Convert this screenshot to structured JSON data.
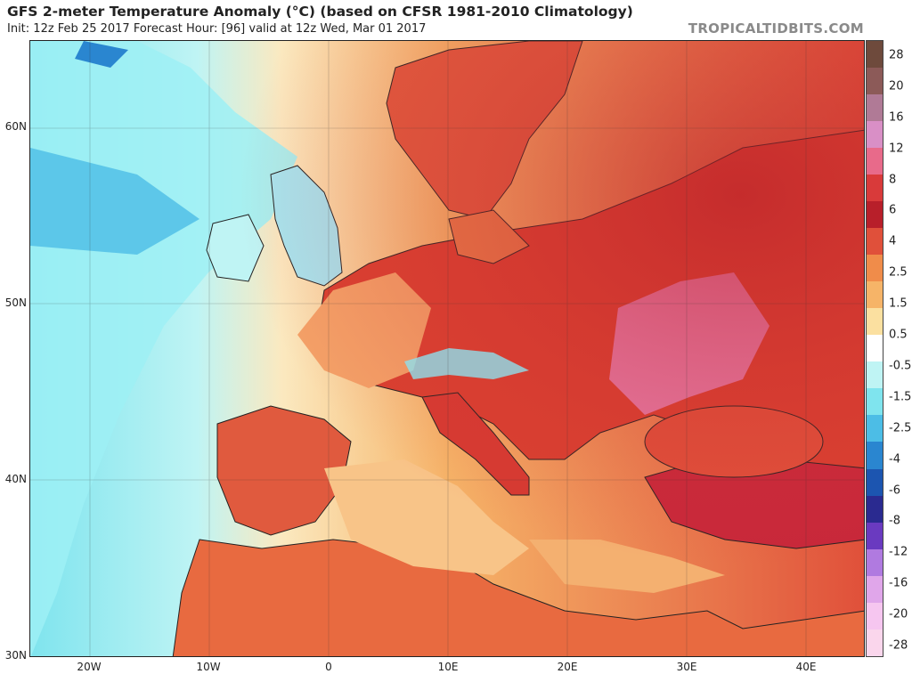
{
  "title": "GFS 2-meter Temperature Anomaly (°C) (based on CFSR 1981-2010 Climatology)",
  "subtitle": "Init: 12z Feb 25 2017   Forecast Hour: [96]   valid at 12z Wed, Mar 01 2017",
  "brand": "TROPICALTIDBITS.COM",
  "lat_labels": [
    "60N",
    "50N",
    "40N",
    "30N"
  ],
  "lon_labels": [
    "20W",
    "10W",
    "0",
    "10E",
    "20E",
    "30E",
    "40E"
  ],
  "colorbar": {
    "labels": [
      "28",
      "20",
      "16",
      "12",
      "8",
      "6",
      "4",
      "2.5",
      "1.5",
      "0.5",
      "-0.5",
      "-1.5",
      "-2.5",
      "-4",
      "-6",
      "-8",
      "-12",
      "-16",
      "-20",
      "-28"
    ],
    "colors": [
      "#6e4a3c",
      "#8c5a58",
      "#b07a96",
      "#d98fc6",
      "#e86a8a",
      "#d93a3a",
      "#b81f2a",
      "#e0503a",
      "#f08c4a",
      "#f6b468",
      "#fbe0a0",
      "#ffffff",
      "#bff4f4",
      "#7fe4ee",
      "#4cbde6",
      "#2a86d0",
      "#1c55b0",
      "#2a2a90",
      "#6a3ac0",
      "#b07ae0",
      "#e0a6ea",
      "#f6c6f0",
      "#fad6ec"
    ]
  }
}
